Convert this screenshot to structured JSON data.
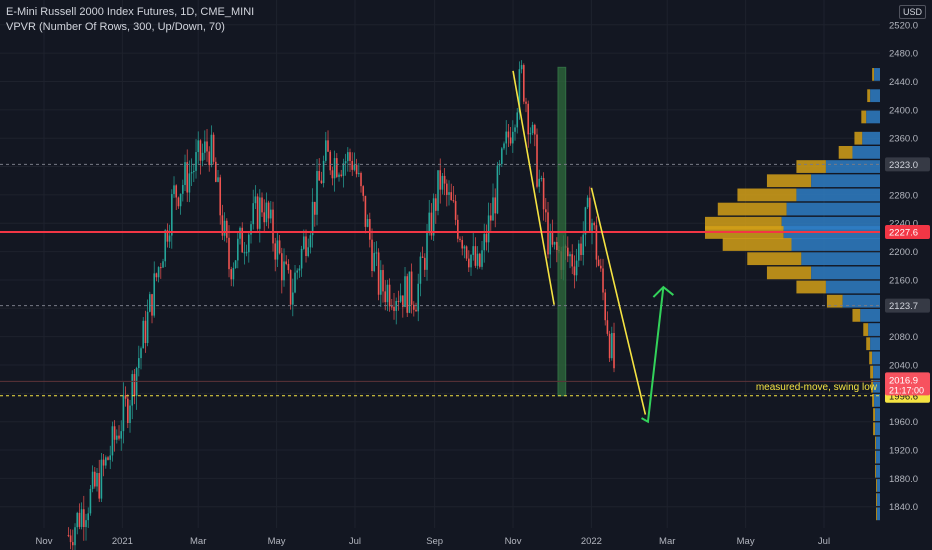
{
  "header": {
    "title": "E-Mini Russell 2000 Index Futures, 1D, CME_MINI",
    "indicator": "VPVR (Number Of Rows, 300, Up/Down, 70)",
    "currency": "USD"
  },
  "colors": {
    "background": "#131722",
    "grid": "#1e222d",
    "axis_text": "#b2b5be",
    "up_candle": "#26a69a",
    "down_candle": "#ef5350",
    "volume_up": "#2f7ec4",
    "volume_down": "#d4a017",
    "red_line": "#f23645",
    "yellow_line": "#f5e342",
    "green_arrow": "#32d25a",
    "green_box": "#2e6b3c"
  },
  "chart_data": {
    "type": "candlestick",
    "title": "E-Mini Russell 2000 Index Futures, 1D, CME_MINI",
    "x_labels": [
      "Nov",
      "2021",
      "Mar",
      "May",
      "Jul",
      "Sep",
      "Nov",
      "2022",
      "Mar",
      "May",
      "Jul"
    ],
    "y_ticks": [
      1840,
      1880,
      1920,
      1960,
      2000,
      2040,
      2080,
      2120,
      2160,
      2200,
      2240,
      2280,
      2320,
      2360,
      2400,
      2440,
      2480,
      2520
    ],
    "y_tick_labels": [
      "1840.0",
      "1880.0",
      "1920.0",
      "1960.0",
      "2000.0",
      "2040.0",
      "2080.0",
      "2120.0",
      "2160.0",
      "2200.0",
      "2240.0",
      "2280.0",
      "2320.0",
      "2360.0",
      "2400.0",
      "2440.0",
      "2480.0",
      "2520.0"
    ],
    "ylim": [
      1810,
      2555
    ],
    "price_path": [
      {
        "date": "2020-11-20",
        "price": 1800
      },
      {
        "date": "2020-12-15",
        "price": 1880
      },
      {
        "date": "2021-01-05",
        "price": 1985
      },
      {
        "date": "2021-01-20",
        "price": 2100
      },
      {
        "date": "2021-02-10",
        "price": 2280
      },
      {
        "date": "2021-03-10",
        "price": 2350
      },
      {
        "date": "2021-03-25",
        "price": 2180
      },
      {
        "date": "2021-04-20",
        "price": 2270
      },
      {
        "date": "2021-05-12",
        "price": 2140
      },
      {
        "date": "2021-06-08",
        "price": 2330
      },
      {
        "date": "2021-06-30",
        "price": 2330
      },
      {
        "date": "2021-07-20",
        "price": 2150
      },
      {
        "date": "2021-08-18",
        "price": 2140
      },
      {
        "date": "2021-09-05",
        "price": 2300
      },
      {
        "date": "2021-10-05",
        "price": 2170
      },
      {
        "date": "2021-11-08",
        "price": 2450
      },
      {
        "date": "2021-11-30",
        "price": 2200
      },
      {
        "date": "2021-12-20",
        "price": 2190
      },
      {
        "date": "2021-12-31",
        "price": 2260
      },
      {
        "date": "2022-01-20",
        "price": 2020
      }
    ],
    "horizontal_levels": [
      {
        "value": 2323.0,
        "label": "2323.0",
        "style": "dashed-grey"
      },
      {
        "value": 2227.6,
        "label": "2227.6",
        "style": "solid-red"
      },
      {
        "value": 2123.7,
        "label": "2123.7",
        "style": "dashed-grey"
      },
      {
        "value": 1996.6,
        "label": "1996.6",
        "style": "dashed-yellow"
      }
    ],
    "last_price": {
      "value": 2016.9,
      "label": "2016.9",
      "countdown": "21:17:00"
    },
    "annotation": "measured-move, swing low",
    "yellow_lines": [
      {
        "from": {
          "date": "2021-11-01",
          "price": 2455
        },
        "to": {
          "date": "2021-12-03",
          "price": 2125
        }
      },
      {
        "from": {
          "date": "2022-01-01",
          "price": 2290
        },
        "to": {
          "date": "2022-02-12",
          "price": 1970
        }
      }
    ],
    "green_box": {
      "date_start": "2021-12-06",
      "date_end": "2021-12-12",
      "price_low": 1996.6,
      "price_high": 2460
    },
    "green_arrow": [
      {
        "date": "2022-02-09",
        "price": 1965
      },
      {
        "date": "2022-02-14",
        "price": 1960
      },
      {
        "date": "2022-02-26",
        "price": 2150
      }
    ],
    "volume_profile": [
      {
        "price": 2450,
        "up": 6,
        "down": 2
      },
      {
        "price": 2420,
        "up": 10,
        "down": 3
      },
      {
        "price": 2390,
        "up": 14,
        "down": 5
      },
      {
        "price": 2360,
        "up": 18,
        "down": 8
      },
      {
        "price": 2340,
        "up": 28,
        "down": 14
      },
      {
        "price": 2320,
        "up": 55,
        "down": 30
      },
      {
        "price": 2300,
        "up": 70,
        "down": 45
      },
      {
        "price": 2280,
        "up": 85,
        "down": 60
      },
      {
        "price": 2260,
        "up": 95,
        "down": 70
      },
      {
        "price": 2240,
        "up": 100,
        "down": 78
      },
      {
        "price": 2227,
        "up": 98,
        "down": 80
      },
      {
        "price": 2210,
        "up": 90,
        "down": 70
      },
      {
        "price": 2190,
        "up": 80,
        "down": 55
      },
      {
        "price": 2170,
        "up": 70,
        "down": 45
      },
      {
        "price": 2150,
        "up": 55,
        "down": 30
      },
      {
        "price": 2130,
        "up": 38,
        "down": 16
      },
      {
        "price": 2110,
        "up": 20,
        "down": 8
      },
      {
        "price": 2090,
        "up": 12,
        "down": 5
      },
      {
        "price": 2070,
        "up": 10,
        "down": 4
      },
      {
        "price": 2050,
        "up": 8,
        "down": 3
      },
      {
        "price": 2030,
        "up": 7,
        "down": 3
      },
      {
        "price": 2010,
        "up": 7,
        "down": 2
      },
      {
        "price": 1990,
        "up": 6,
        "down": 2
      },
      {
        "price": 1970,
        "up": 5,
        "down": 2
      },
      {
        "price": 1950,
        "up": 5,
        "down": 2
      },
      {
        "price": 1930,
        "up": 4,
        "down": 1
      },
      {
        "price": 1910,
        "up": 4,
        "down": 1
      },
      {
        "price": 1890,
        "up": 4,
        "down": 1
      },
      {
        "price": 1870,
        "up": 3,
        "down": 1
      },
      {
        "price": 1850,
        "up": 3,
        "down": 1
      },
      {
        "price": 1830,
        "up": 3,
        "down": 1
      }
    ]
  }
}
